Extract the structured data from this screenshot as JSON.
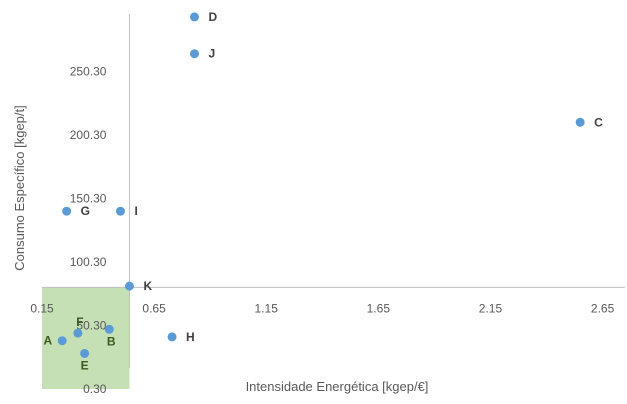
{
  "chart_data": {
    "type": "scatter",
    "xlabel": "Intensidade Energética [kgep/€]",
    "ylabel": "Consumo Específico [kgep/t]",
    "x_ticks": [
      "0.15",
      "0.65",
      "1.15",
      "1.65",
      "2.15",
      "2.65"
    ],
    "y_ticks": [
      "0.30",
      "50.30",
      "100.30",
      "150.30",
      "200.30",
      "250.30"
    ],
    "xlim": [
      0.15,
      2.75
    ],
    "ylim": [
      0.3,
      300.3
    ],
    "axis_cross": {
      "x": 0.54,
      "y": 80.3
    },
    "highlight_region": {
      "x": [
        0.15,
        0.54
      ],
      "y": [
        0.3,
        80.3
      ],
      "color": "#c5e0b4"
    },
    "marker_color": "#5b9bd5",
    "points": [
      {
        "label": "A",
        "x": 0.24,
        "y": 38.3
      },
      {
        "label": "B",
        "x": 0.45,
        "y": 47.3
      },
      {
        "label": "C",
        "x": 2.55,
        "y": 210.3
      },
      {
        "label": "D",
        "x": 0.83,
        "y": 293.3
      },
      {
        "label": "E",
        "x": 0.34,
        "y": 28.3
      },
      {
        "label": "F",
        "x": 0.31,
        "y": 44.3
      },
      {
        "label": "G",
        "x": 0.26,
        "y": 140.3
      },
      {
        "label": "H",
        "x": 0.73,
        "y": 41.3
      },
      {
        "label": "I",
        "x": 0.5,
        "y": 140.3
      },
      {
        "label": "J",
        "x": 0.83,
        "y": 264.3
      },
      {
        "label": "K",
        "x": 0.54,
        "y": 81.3
      }
    ]
  }
}
